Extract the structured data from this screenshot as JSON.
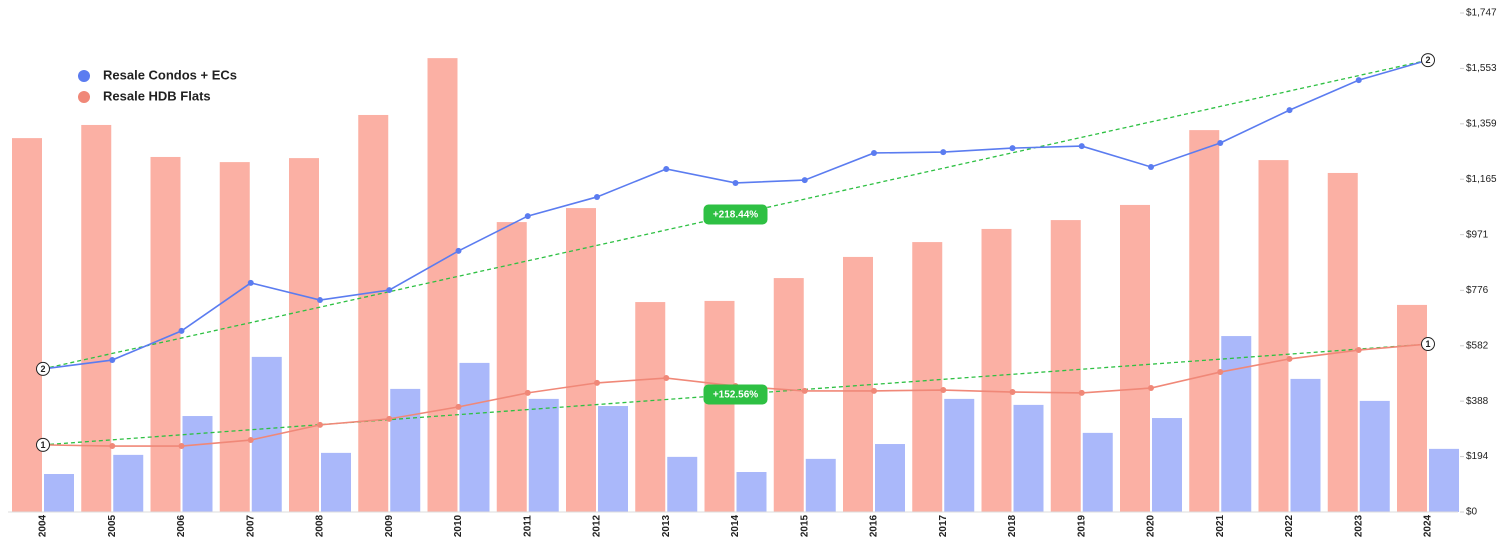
{
  "chart_data": {
    "type": "combo",
    "categories": [
      "2004",
      "2005",
      "2006",
      "2007",
      "2008",
      "2009",
      "2010",
      "2011",
      "2012",
      "2013",
      "2014",
      "2015",
      "2016",
      "2017",
      "2018",
      "2019",
      "2020",
      "2021",
      "2022",
      "2023",
      "2024"
    ],
    "series": [
      {
        "name": "Resale Condos + ECs",
        "color": "#5b7cf0",
        "bar_color": "#aab8fa",
        "values": [
          501,
          532,
          634,
          802,
          742,
          777,
          914,
          1036,
          1103,
          1201,
          1152,
          1162,
          1257,
          1260,
          1274,
          1281,
          1208,
          1292,
          1407,
          1512,
          1582
        ],
        "bars": [
          133,
          200,
          336,
          543,
          207,
          431,
          522,
          396,
          371,
          193,
          140,
          186,
          238,
          396,
          375,
          277,
          329,
          616,
          466,
          389,
          221
        ],
        "trend_label": "2",
        "trend_change": "+218.44%"
      },
      {
        "name": "Resale HDB Flats",
        "color": "#f08878",
        "bar_color": "#fbb0a4",
        "values": [
          235,
          231,
          231,
          252,
          305,
          326,
          368,
          417,
          452,
          469,
          441,
          424,
          424,
          427,
          420,
          417,
          434,
          490,
          536,
          567,
          588
        ],
        "bars": [
          1309,
          1355,
          1243,
          1225,
          1239,
          1390,
          1589,
          1015,
          1064,
          735,
          739,
          819,
          893,
          945,
          991,
          1022,
          1075,
          1337,
          1232,
          1187,
          725
        ],
        "trend_label": "1",
        "trend_change": "+152.56%"
      }
    ],
    "trend_color": "#2ec043",
    "ylim": [
      0,
      1747
    ],
    "yticks": [
      {
        "value": 0,
        "label": "$0"
      },
      {
        "value": 194,
        "label": "$194"
      },
      {
        "value": 388,
        "label": "$388"
      },
      {
        "value": 582,
        "label": "$582"
      },
      {
        "value": 776,
        "label": "$776"
      },
      {
        "value": 971,
        "label": "$971"
      },
      {
        "value": 1165,
        "label": "$1,165"
      },
      {
        "value": 1359,
        "label": "$1,359"
      },
      {
        "value": 1553,
        "label": "$1,553"
      },
      {
        "value": 1747,
        "label": "$1,747"
      }
    ],
    "y_axis_side": "right",
    "grid": false
  }
}
